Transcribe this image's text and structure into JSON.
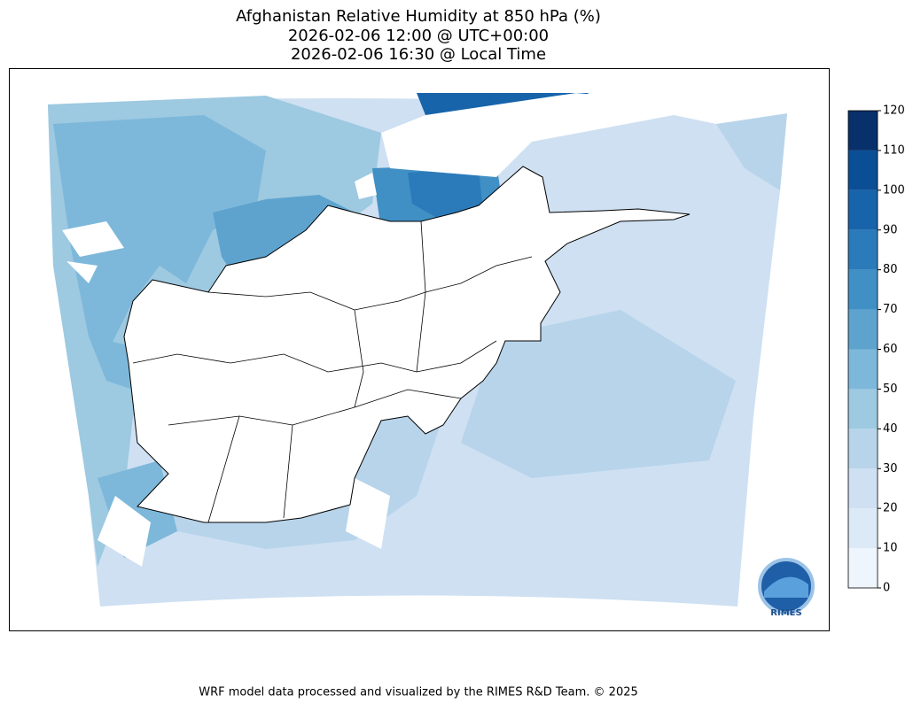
{
  "title": [
    "Afghanistan Relative Humidity at 850 hPa (%)",
    "2026-02-06 12:00 @ UTC+00:00",
    "2026-02-06 16:30 @ Local Time"
  ],
  "colorbar": {
    "levels": [
      0,
      10,
      20,
      30,
      40,
      50,
      60,
      70,
      80,
      90,
      100,
      110,
      120
    ],
    "colors": [
      "#eff5fc",
      "#dce9f6",
      "#cee0f2",
      "#b7d4ea",
      "#9dc9e1",
      "#7db8da",
      "#5ea3ce",
      "#4090c5",
      "#2b7bba",
      "#1764ab",
      "#0a4f95",
      "#08306b"
    ]
  },
  "logo_text": "RIMES",
  "footer": "WRF model data processed and visualized by the RIMES R&D Team. © 2025"
}
